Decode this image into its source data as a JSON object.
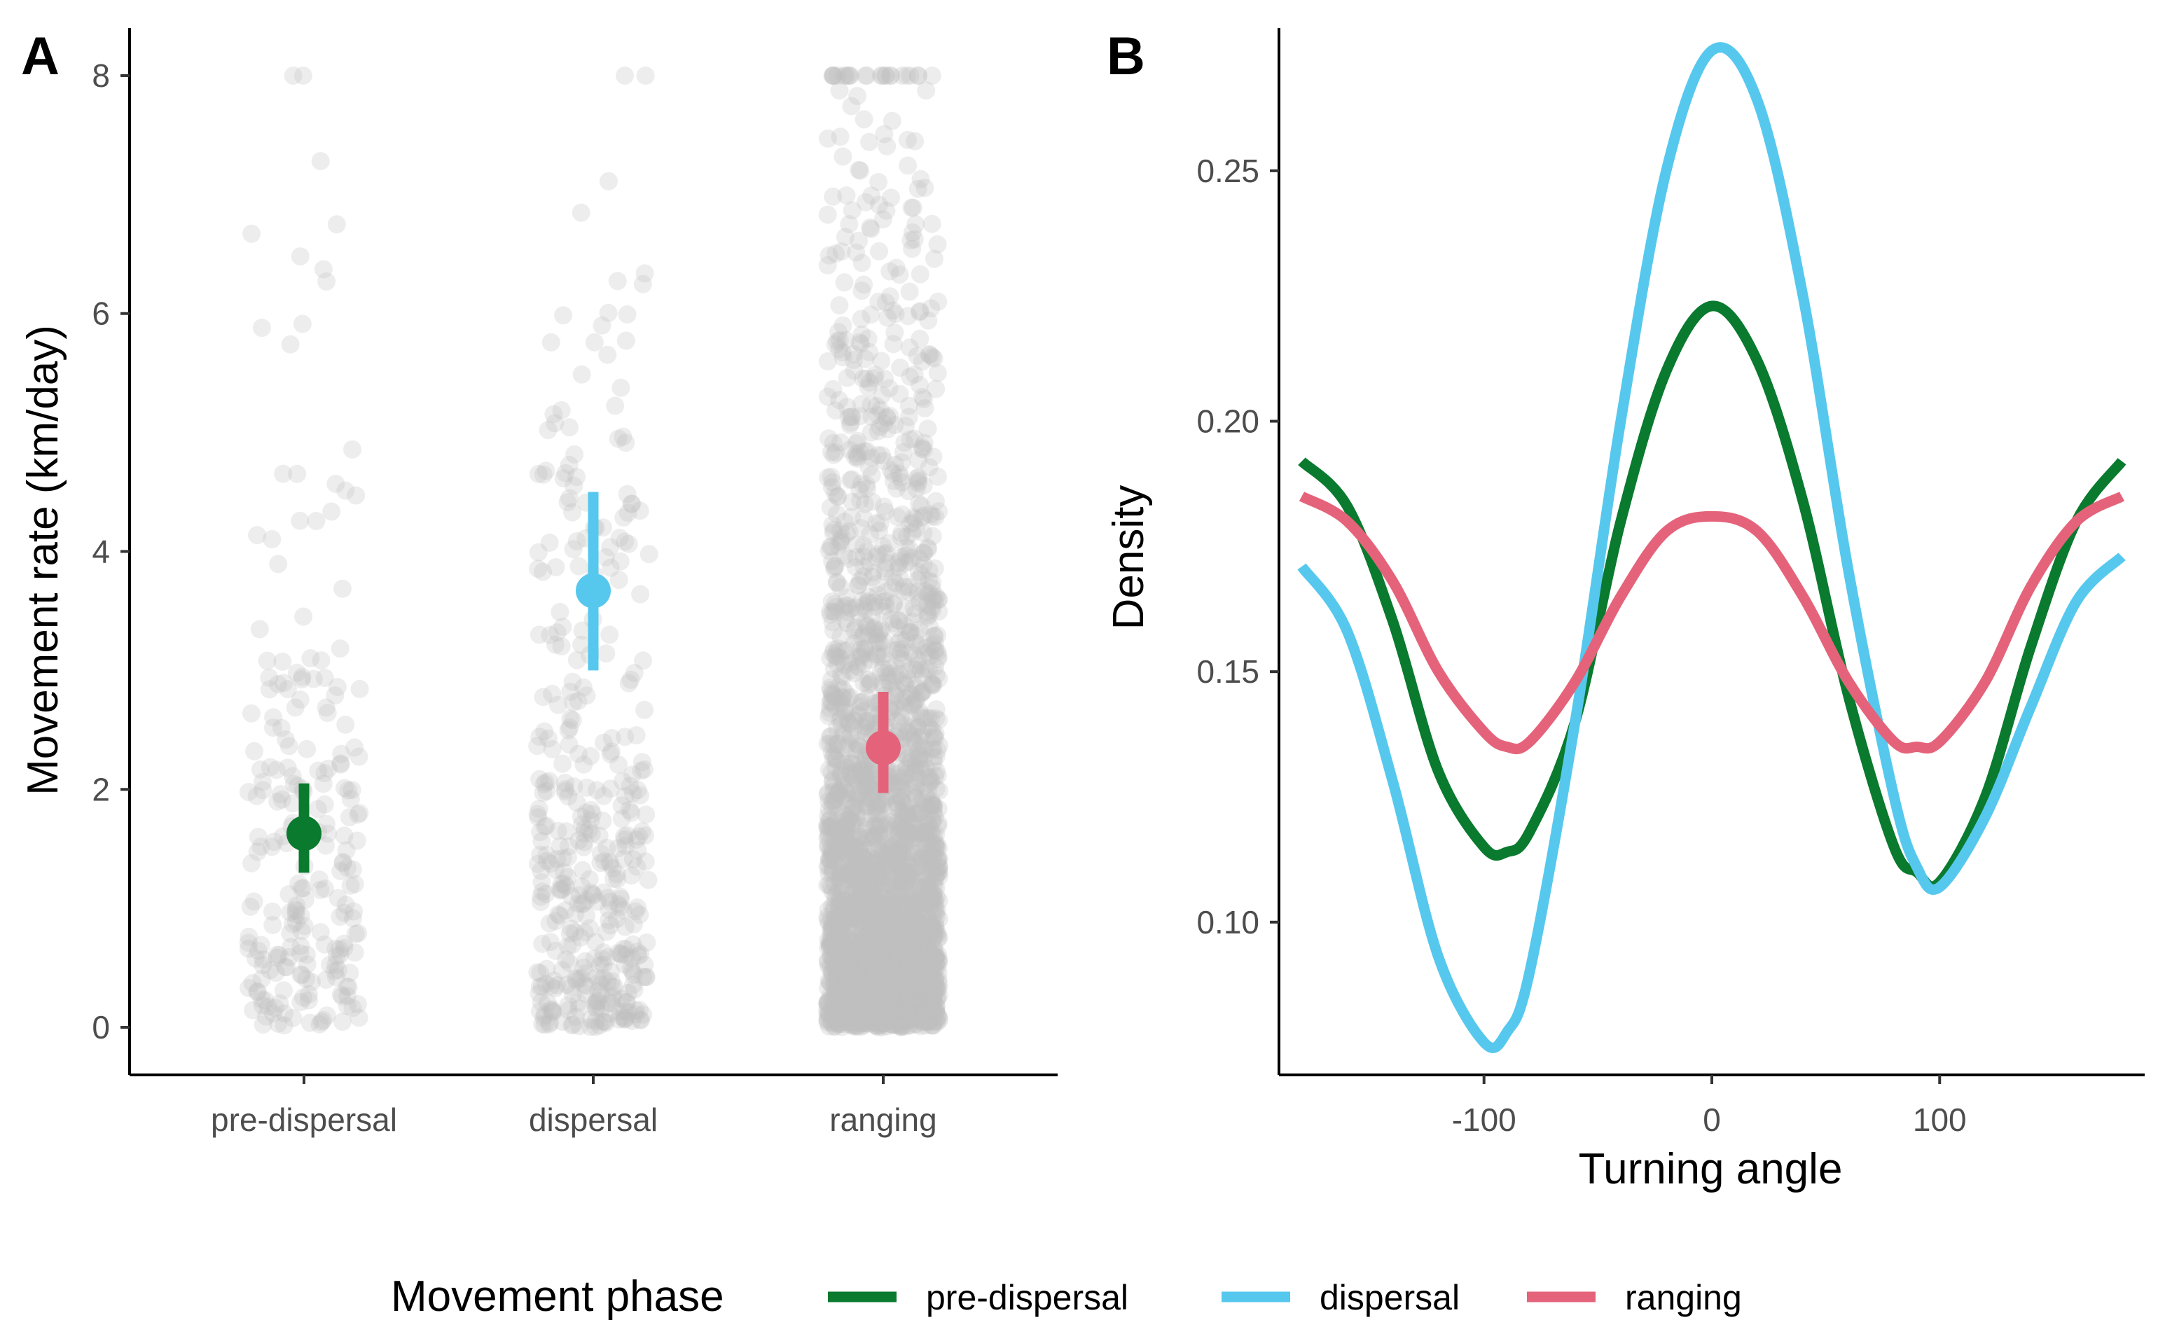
{
  "chart_data": [
    {
      "panel": "A",
      "type": "scatter",
      "xlabel": "",
      "ylabel": "Movement rate (km/day)",
      "categories": [
        "pre-dispersal",
        "dispersal",
        "ranging"
      ],
      "ylim": [
        -0.4,
        8.4
      ],
      "yticks": [
        0,
        2,
        4,
        6,
        8
      ],
      "jitter_point_counts": [
        230,
        400,
        2600
      ],
      "jitter_point_color": "#bebebe",
      "summary": [
        {
          "category": "pre-dispersal",
          "mean": 1.63,
          "lower": 1.3,
          "upper": 2.05,
          "color": "#097a2e"
        },
        {
          "category": "dispersal",
          "mean": 3.67,
          "lower": 3.0,
          "upper": 4.5,
          "color": "#56c8ee"
        },
        {
          "category": "ranging",
          "mean": 2.35,
          "lower": 1.97,
          "upper": 2.82,
          "color": "#e5637a"
        }
      ]
    },
    {
      "panel": "B",
      "type": "line",
      "xlabel": "Turning angle",
      "ylabel": "Density",
      "xlim": [
        -190,
        190
      ],
      "ylim": [
        0.0695,
        0.2785
      ],
      "xticks": [
        -100,
        0,
        100
      ],
      "xtick_labels": [
        "-100",
        "0",
        "100"
      ],
      "yticks": [
        0.1,
        0.15,
        0.2,
        0.25
      ],
      "ytick_labels": [
        "0.10",
        "0.15",
        "0.20",
        "0.25"
      ],
      "x": [
        -180,
        -160,
        -140,
        -120,
        -100,
        -90,
        -80,
        -60,
        -40,
        -20,
        0,
        20,
        40,
        60,
        80,
        90,
        100,
        120,
        140,
        160,
        180
      ],
      "series": [
        {
          "name": "pre-dispersal",
          "color": "#097a2e",
          "values": [
            0.192,
            0.183,
            0.16,
            0.13,
            0.115,
            0.114,
            0.118,
            0.14,
            0.18,
            0.21,
            0.223,
            0.212,
            0.184,
            0.145,
            0.115,
            0.11,
            0.108,
            0.125,
            0.155,
            0.18,
            0.192
          ]
        },
        {
          "name": "dispersal",
          "color": "#56c8ee",
          "values": [
            0.171,
            0.158,
            0.128,
            0.093,
            0.076,
            0.078,
            0.09,
            0.14,
            0.2,
            0.25,
            0.274,
            0.264,
            0.225,
            0.17,
            0.125,
            0.111,
            0.107,
            0.121,
            0.143,
            0.164,
            0.173
          ]
        },
        {
          "name": "ranging",
          "color": "#e5637a",
          "values": [
            0.185,
            0.18,
            0.168,
            0.15,
            0.138,
            0.135,
            0.136,
            0.148,
            0.165,
            0.178,
            0.181,
            0.178,
            0.165,
            0.148,
            0.136,
            0.135,
            0.136,
            0.148,
            0.167,
            0.18,
            0.185
          ]
        }
      ]
    }
  ],
  "panels": {
    "a": {
      "tag": "A"
    },
    "b": {
      "tag": "B"
    }
  },
  "legend": {
    "title": "Movement phase",
    "items": [
      {
        "label": "pre-dispersal",
        "color": "#097a2e"
      },
      {
        "label": "dispersal",
        "color": "#56c8ee"
      },
      {
        "label": "ranging",
        "color": "#e5637a"
      }
    ]
  }
}
